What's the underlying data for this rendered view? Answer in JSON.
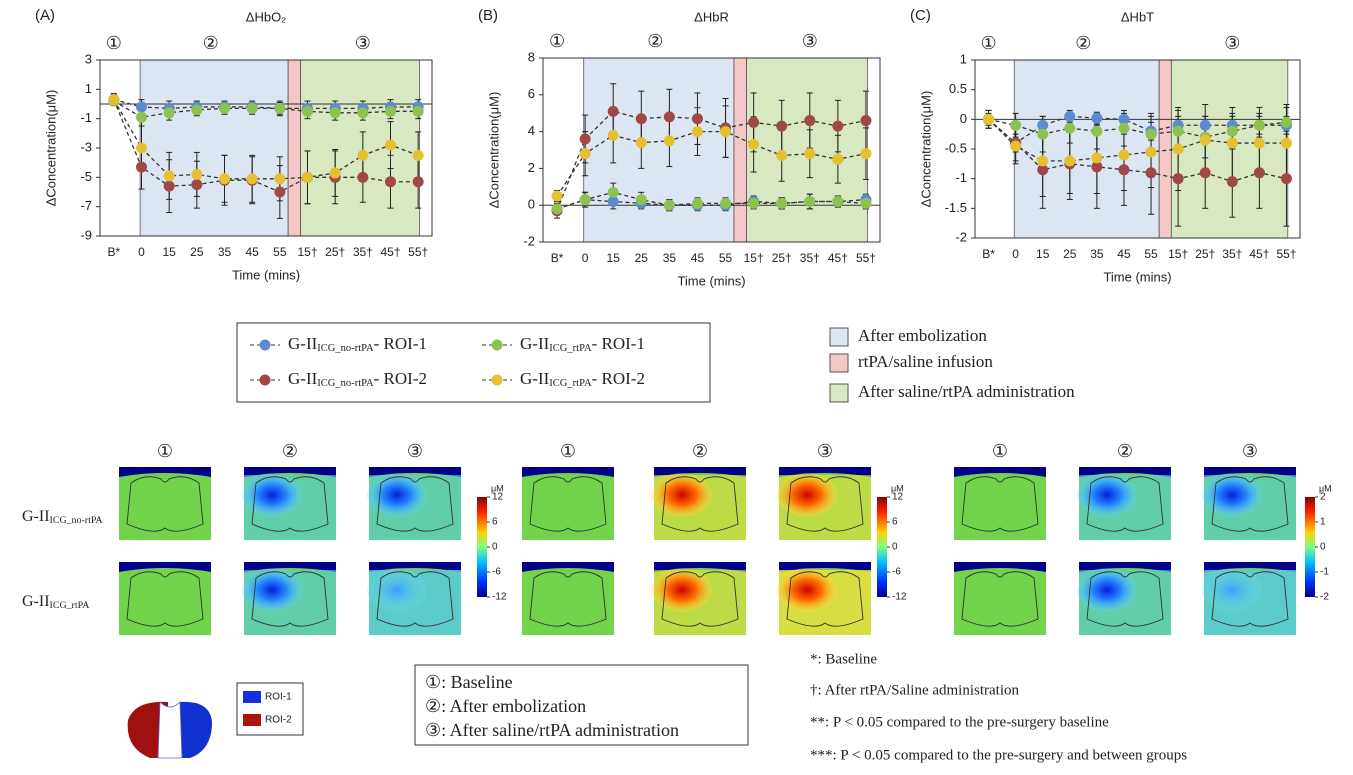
{
  "chart_data": [
    {
      "type": "line",
      "panel": "(A)",
      "title": "ΔHbO₂",
      "phases": [
        "①",
        "②",
        "③"
      ],
      "xlabel": "Time (mins)",
      "ylabel": "ΔConcentration(μM)",
      "categories": [
        "B*",
        "0",
        "15",
        "25",
        "35",
        "45",
        "55",
        "15†",
        "25†",
        "35†",
        "45†",
        "55†"
      ],
      "ylim": [
        -9,
        3
      ],
      "yticks": [
        3,
        1,
        -1,
        -3,
        -5,
        -7,
        -9
      ],
      "series": [
        {
          "color": "#5b8bd0",
          "values": [
            0.3,
            -0.2,
            -0.3,
            -0.2,
            -0.2,
            -0.2,
            -0.3,
            -0.3,
            -0.3,
            -0.3,
            -0.2,
            -0.2
          ],
          "errors": [
            0.3,
            0.5,
            0.5,
            0.4,
            0.4,
            0.4,
            0.5,
            0.5,
            0.5,
            0.5,
            0.5,
            0.5
          ]
        },
        {
          "color": "#a04848",
          "values": [
            0.3,
            -4.3,
            -5.6,
            -5.5,
            -5.2,
            -5.2,
            -6.0,
            -5.0,
            -5.0,
            -5.0,
            -5.3,
            -5.3
          ],
          "errors": [
            0.4,
            1.5,
            1.8,
            1.6,
            1.7,
            1.6,
            1.8,
            1.8,
            1.8,
            1.7,
            1.8,
            1.8
          ]
        },
        {
          "color": "#8dc150",
          "values": [
            0.2,
            -0.9,
            -0.6,
            -0.4,
            -0.3,
            -0.3,
            -0.3,
            -0.5,
            -0.6,
            -0.6,
            -0.5,
            -0.5
          ],
          "errors": [
            0.3,
            0.6,
            0.5,
            0.4,
            0.4,
            0.4,
            0.4,
            0.5,
            0.5,
            0.5,
            0.5,
            0.5
          ]
        },
        {
          "color": "#e6c12f",
          "values": [
            0.3,
            -3.0,
            -4.9,
            -4.8,
            -5.1,
            -5.1,
            -5.1,
            -5.0,
            -4.7,
            -3.5,
            -2.8,
            -3.5
          ],
          "errors": [
            0.4,
            1.5,
            1.6,
            1.5,
            1.6,
            1.6,
            1.5,
            1.8,
            1.6,
            1.6,
            1.6,
            1.6
          ]
        }
      ]
    },
    {
      "type": "line",
      "panel": "(B)",
      "title": "ΔHbR",
      "phases": [
        "①",
        "②",
        "③"
      ],
      "xlabel": "Time (mins)",
      "ylabel": "ΔConcentration(μM)",
      "categories": [
        "B*",
        "0",
        "15",
        "25",
        "35",
        "45",
        "55",
        "15†",
        "25†",
        "35†",
        "45†",
        "55†"
      ],
      "ylim": [
        -2,
        8
      ],
      "yticks": [
        8,
        6,
        4,
        2,
        0,
        -2
      ],
      "series": [
        {
          "color": "#5b8bd0",
          "values": [
            -0.2,
            0.3,
            0.2,
            0.1,
            0.0,
            0.0,
            0.0,
            0.2,
            0.1,
            0.2,
            0.2,
            0.3
          ],
          "errors": [
            0.3,
            0.4,
            0.4,
            0.3,
            0.3,
            0.3,
            0.3,
            0.3,
            0.3,
            0.4,
            0.3,
            0.3
          ]
        },
        {
          "color": "#a04848",
          "values": [
            -0.3,
            3.6,
            5.1,
            4.7,
            4.8,
            4.7,
            4.2,
            4.5,
            4.3,
            4.6,
            4.3,
            4.6
          ],
          "errors": [
            0.4,
            1.3,
            1.5,
            1.5,
            1.5,
            1.4,
            1.6,
            1.6,
            1.4,
            1.5,
            1.4,
            1.6
          ]
        },
        {
          "color": "#8dc150",
          "values": [
            -0.2,
            0.3,
            0.7,
            0.3,
            0.0,
            0.1,
            0.1,
            0.1,
            0.1,
            0.2,
            0.2,
            0.1
          ],
          "errors": [
            0.3,
            0.4,
            0.5,
            0.4,
            0.3,
            0.3,
            0.3,
            0.3,
            0.3,
            0.4,
            0.3,
            0.3
          ]
        },
        {
          "color": "#e6c12f",
          "values": [
            0.5,
            2.8,
            3.8,
            3.4,
            3.5,
            4.0,
            4.0,
            3.3,
            2.7,
            2.8,
            2.5,
            2.8
          ],
          "errors": [
            0.3,
            1.2,
            1.5,
            1.4,
            1.4,
            1.3,
            1.4,
            1.5,
            1.4,
            1.3,
            1.3,
            1.4
          ]
        }
      ]
    },
    {
      "type": "line",
      "panel": "(C)",
      "title": "ΔHbT",
      "phases": [
        "①",
        "②",
        "③"
      ],
      "xlabel": "Time (mins)",
      "ylabel": "ΔConcentration(μM)",
      "categories": [
        "B*",
        "0",
        "15",
        "25",
        "35",
        "45",
        "55",
        "15†",
        "25†",
        "35†",
        "45†",
        "55†"
      ],
      "ylim": [
        -2,
        1
      ],
      "yticks": [
        1,
        0.5,
        0,
        -0.5,
        -1,
        -1.5,
        -2
      ],
      "series": [
        {
          "color": "#5b8bd0",
          "values": [
            0,
            -0.4,
            -0.1,
            0.05,
            0.02,
            0.0,
            -0.2,
            -0.1,
            -0.1,
            -0.1,
            -0.1,
            -0.1
          ],
          "errors": [
            0.15,
            0.15,
            0.15,
            0.1,
            0.1,
            0.1,
            0.15,
            0.15,
            0.15,
            0.15,
            0.15,
            0.15
          ]
        },
        {
          "color": "#a04848",
          "values": [
            0,
            -0.4,
            -0.85,
            -0.75,
            -0.8,
            -0.85,
            -0.9,
            -1.0,
            -0.9,
            -1.05,
            -0.9,
            -1.0
          ],
          "errors": [
            0.15,
            0.3,
            0.65,
            0.6,
            0.7,
            0.6,
            0.7,
            0.8,
            0.6,
            0.6,
            0.6,
            0.8
          ]
        },
        {
          "color": "#8dc150",
          "values": [
            0,
            -0.1,
            -0.25,
            -0.15,
            -0.2,
            -0.15,
            -0.25,
            -0.2,
            -0.3,
            -0.2,
            -0.1,
            -0.05
          ],
          "errors": [
            0.1,
            0.2,
            0.3,
            0.25,
            0.3,
            0.3,
            0.35,
            0.35,
            0.35,
            0.3,
            0.3,
            0.3
          ]
        },
        {
          "color": "#e6c12f",
          "values": [
            0,
            -0.45,
            -0.7,
            -0.7,
            -0.65,
            -0.6,
            -0.55,
            -0.5,
            -0.35,
            -0.4,
            -0.4,
            -0.4
          ],
          "errors": [
            0.15,
            0.3,
            0.6,
            0.55,
            0.6,
            0.6,
            0.6,
            0.7,
            0.6,
            0.6,
            0.5,
            0.6
          ]
        }
      ]
    }
  ],
  "series_legend": [
    {
      "base": "G-II",
      "sub": "ICG_no-rtPA",
      "suffix": "- ROI-1",
      "color": "#5b8bd0"
    },
    {
      "base": "G-II",
      "sub": "ICG_no-rtPA",
      "suffix": "- ROI-2",
      "color": "#a04848"
    },
    {
      "base": "G-II",
      "sub": "ICG_rtPA",
      "suffix": "- ROI-1",
      "color": "#8dc150"
    },
    {
      "base": "G-II",
      "sub": "ICG_rtPA",
      "suffix": "- ROI-2",
      "color": "#e6c12f"
    }
  ],
  "region_legend": [
    {
      "label": "After embolization",
      "color": "#dce6f2"
    },
    {
      "label": "rtPA/saline infusion",
      "color": "#f5c8c8"
    },
    {
      "label": "After saline/rtPA administration",
      "color": "#d7e8c2"
    }
  ],
  "heatmaps": {
    "column_headers": [
      "①",
      "②",
      "③",
      "①",
      "②",
      "③",
      "①",
      "②",
      "③"
    ],
    "row_labels": [
      {
        "base": "G-II",
        "sub": "ICG_no-rtPA"
      },
      {
        "base": "G-II",
        "sub": "ICG_rtPA"
      }
    ],
    "colorbars": [
      {
        "unit": "μM",
        "range": [
          -12,
          12
        ],
        "ticks": [
          12,
          6,
          0,
          -6,
          -12
        ]
      },
      {
        "unit": "μM",
        "range": [
          -12,
          12
        ],
        "ticks": [
          12,
          6,
          0,
          -6,
          -12
        ]
      },
      {
        "unit": "μM",
        "range": [
          -2,
          2
        ],
        "ticks": [
          2,
          1,
          0,
          -1,
          -2
        ]
      }
    ]
  },
  "roi_legend": [
    {
      "label": "ROI-1",
      "color": "#1030e0"
    },
    {
      "label": "ROI-2",
      "color": "#b01010"
    }
  ],
  "phase_legend": [
    "①: Baseline",
    "②: After embolization",
    "③: After saline/rtPA administration"
  ],
  "notes": [
    "*: Baseline",
    "†: After rtPA/Saline administration",
    "**: P < 0.05 compared to the pre-surgery baseline",
    "***: P < 0.05 compared to the pre-surgery and between groups"
  ]
}
